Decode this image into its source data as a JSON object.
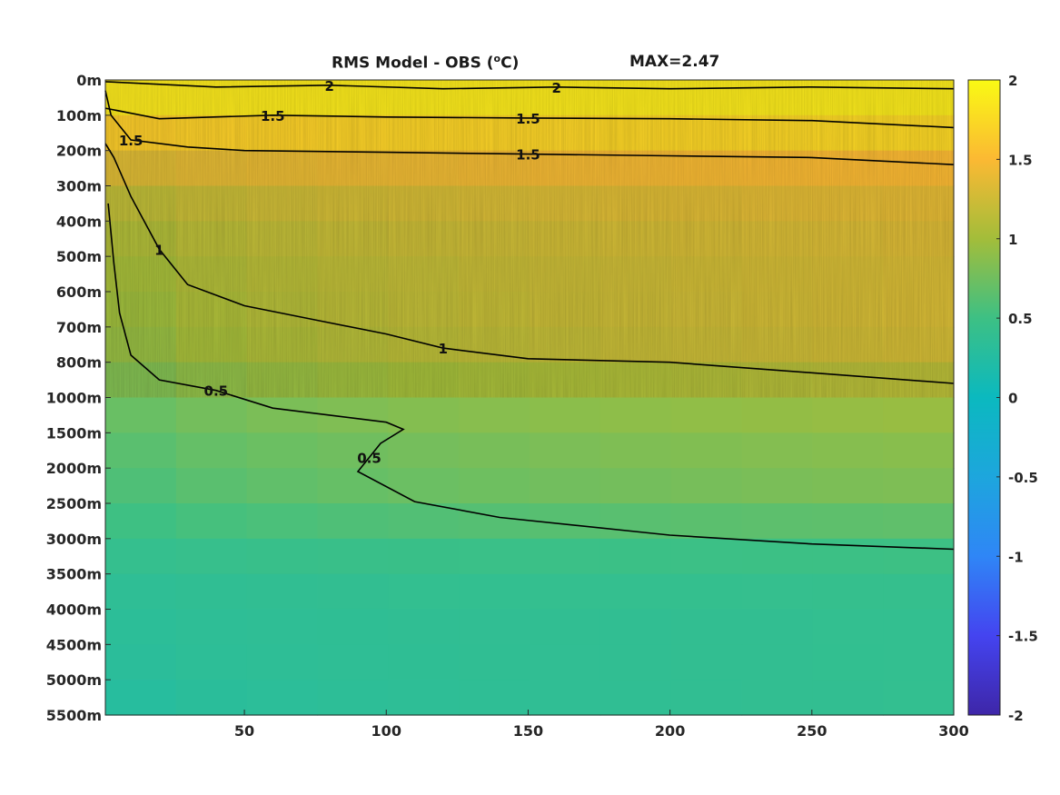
{
  "chart_data": {
    "type": "heatmap",
    "title_prefix": "RMS Model - OBS (",
    "title_unit_sup": "o",
    "title_suffix": "C)",
    "max_label": "MAX=2.47",
    "xlabel": "",
    "ylabel": "",
    "xlim": [
      1,
      300
    ],
    "x_ticks": [
      50,
      100,
      150,
      200,
      250,
      300
    ],
    "y_tick_labels": [
      "0m",
      "100m",
      "200m",
      "300m",
      "400m",
      "500m",
      "600m",
      "700m",
      "800m",
      "1000m",
      "1500m",
      "2000m",
      "2500m",
      "3000m",
      "3500m",
      "4000m",
      "4500m",
      "5000m",
      "5500m"
    ],
    "colorbar": {
      "range": [
        -2,
        2
      ],
      "ticks": [
        "2",
        "1.5",
        "1",
        "0.5",
        "0",
        "-0.5",
        "-1",
        "-1.5",
        "-2"
      ],
      "colormap": "parula"
    },
    "depth_profile": {
      "depth_levels": [
        "0m",
        "100m",
        "200m",
        "300m",
        "400m",
        "500m",
        "600m",
        "700m",
        "800m",
        "1000m",
        "1500m",
        "2000m",
        "2500m",
        "3000m",
        "3500m",
        "4000m",
        "4500m",
        "5000m",
        "5500m"
      ],
      "rms_left": [
        1.9,
        1.8,
        1.4,
        1.1,
        1.0,
        0.9,
        0.85,
        0.8,
        0.75,
        0.65,
        0.55,
        0.5,
        0.45,
        0.4,
        0.35,
        0.3,
        0.3,
        0.25,
        0.2
      ],
      "rms_right": [
        1.9,
        1.85,
        1.6,
        1.4,
        1.35,
        1.3,
        1.3,
        1.3,
        1.25,
        1.0,
        0.9,
        0.85,
        0.8,
        0.55,
        0.45,
        0.4,
        0.4,
        0.4,
        0.4
      ]
    },
    "contours": [
      {
        "level": 0.5,
        "label": "0.5",
        "points": [
          [
            2,
            3.5
          ],
          [
            4,
            5.2
          ],
          [
            6,
            6.6
          ],
          [
            10,
            7.8
          ],
          [
            20,
            8.5
          ],
          [
            40,
            8.8
          ],
          [
            60,
            9.3
          ],
          [
            80,
            9.5
          ],
          [
            100,
            9.7
          ],
          [
            106,
            9.9
          ],
          [
            98,
            10.3
          ],
          [
            94,
            10.7
          ],
          [
            90,
            11.1
          ],
          [
            110,
            11.95
          ],
          [
            140,
            12.4
          ],
          [
            200,
            12.9
          ],
          [
            250,
            13.15
          ],
          [
            300,
            13.3
          ]
        ]
      },
      {
        "level": 1.0,
        "label": "1",
        "points": [
          [
            1,
            1.8
          ],
          [
            4,
            2.2
          ],
          [
            10,
            3.3
          ],
          [
            20,
            4.8
          ],
          [
            30,
            5.8
          ],
          [
            50,
            6.4
          ],
          [
            75,
            6.8
          ],
          [
            100,
            7.2
          ],
          [
            120,
            7.6
          ],
          [
            150,
            7.9
          ],
          [
            200,
            8.0
          ],
          [
            250,
            8.3
          ],
          [
            300,
            8.6
          ]
        ]
      },
      {
        "level": 1.5,
        "label": "1.5",
        "points": [
          [
            1,
            0.3
          ],
          [
            3,
            1.0
          ],
          [
            10,
            1.7
          ],
          [
            30,
            1.9
          ],
          [
            50,
            2.0
          ],
          [
            100,
            2.05
          ],
          [
            150,
            2.1
          ],
          [
            200,
            2.15
          ],
          [
            250,
            2.2
          ],
          [
            300,
            2.4
          ]
        ]
      },
      {
        "level": 1.5,
        "label": "1.5",
        "points": [
          [
            1,
            0.8
          ],
          [
            20,
            1.1
          ],
          [
            60,
            1.0
          ],
          [
            100,
            1.05
          ],
          [
            150,
            1.08
          ],
          [
            200,
            1.1
          ],
          [
            250,
            1.15
          ],
          [
            300,
            1.35
          ]
        ]
      },
      {
        "level": 2.0,
        "label": "2",
        "points": [
          [
            1,
            0.05
          ],
          [
            40,
            0.2
          ],
          [
            80,
            0.15
          ],
          [
            120,
            0.25
          ],
          [
            160,
            0.2
          ],
          [
            200,
            0.25
          ],
          [
            250,
            0.2
          ],
          [
            300,
            0.25
          ]
        ]
      }
    ]
  }
}
